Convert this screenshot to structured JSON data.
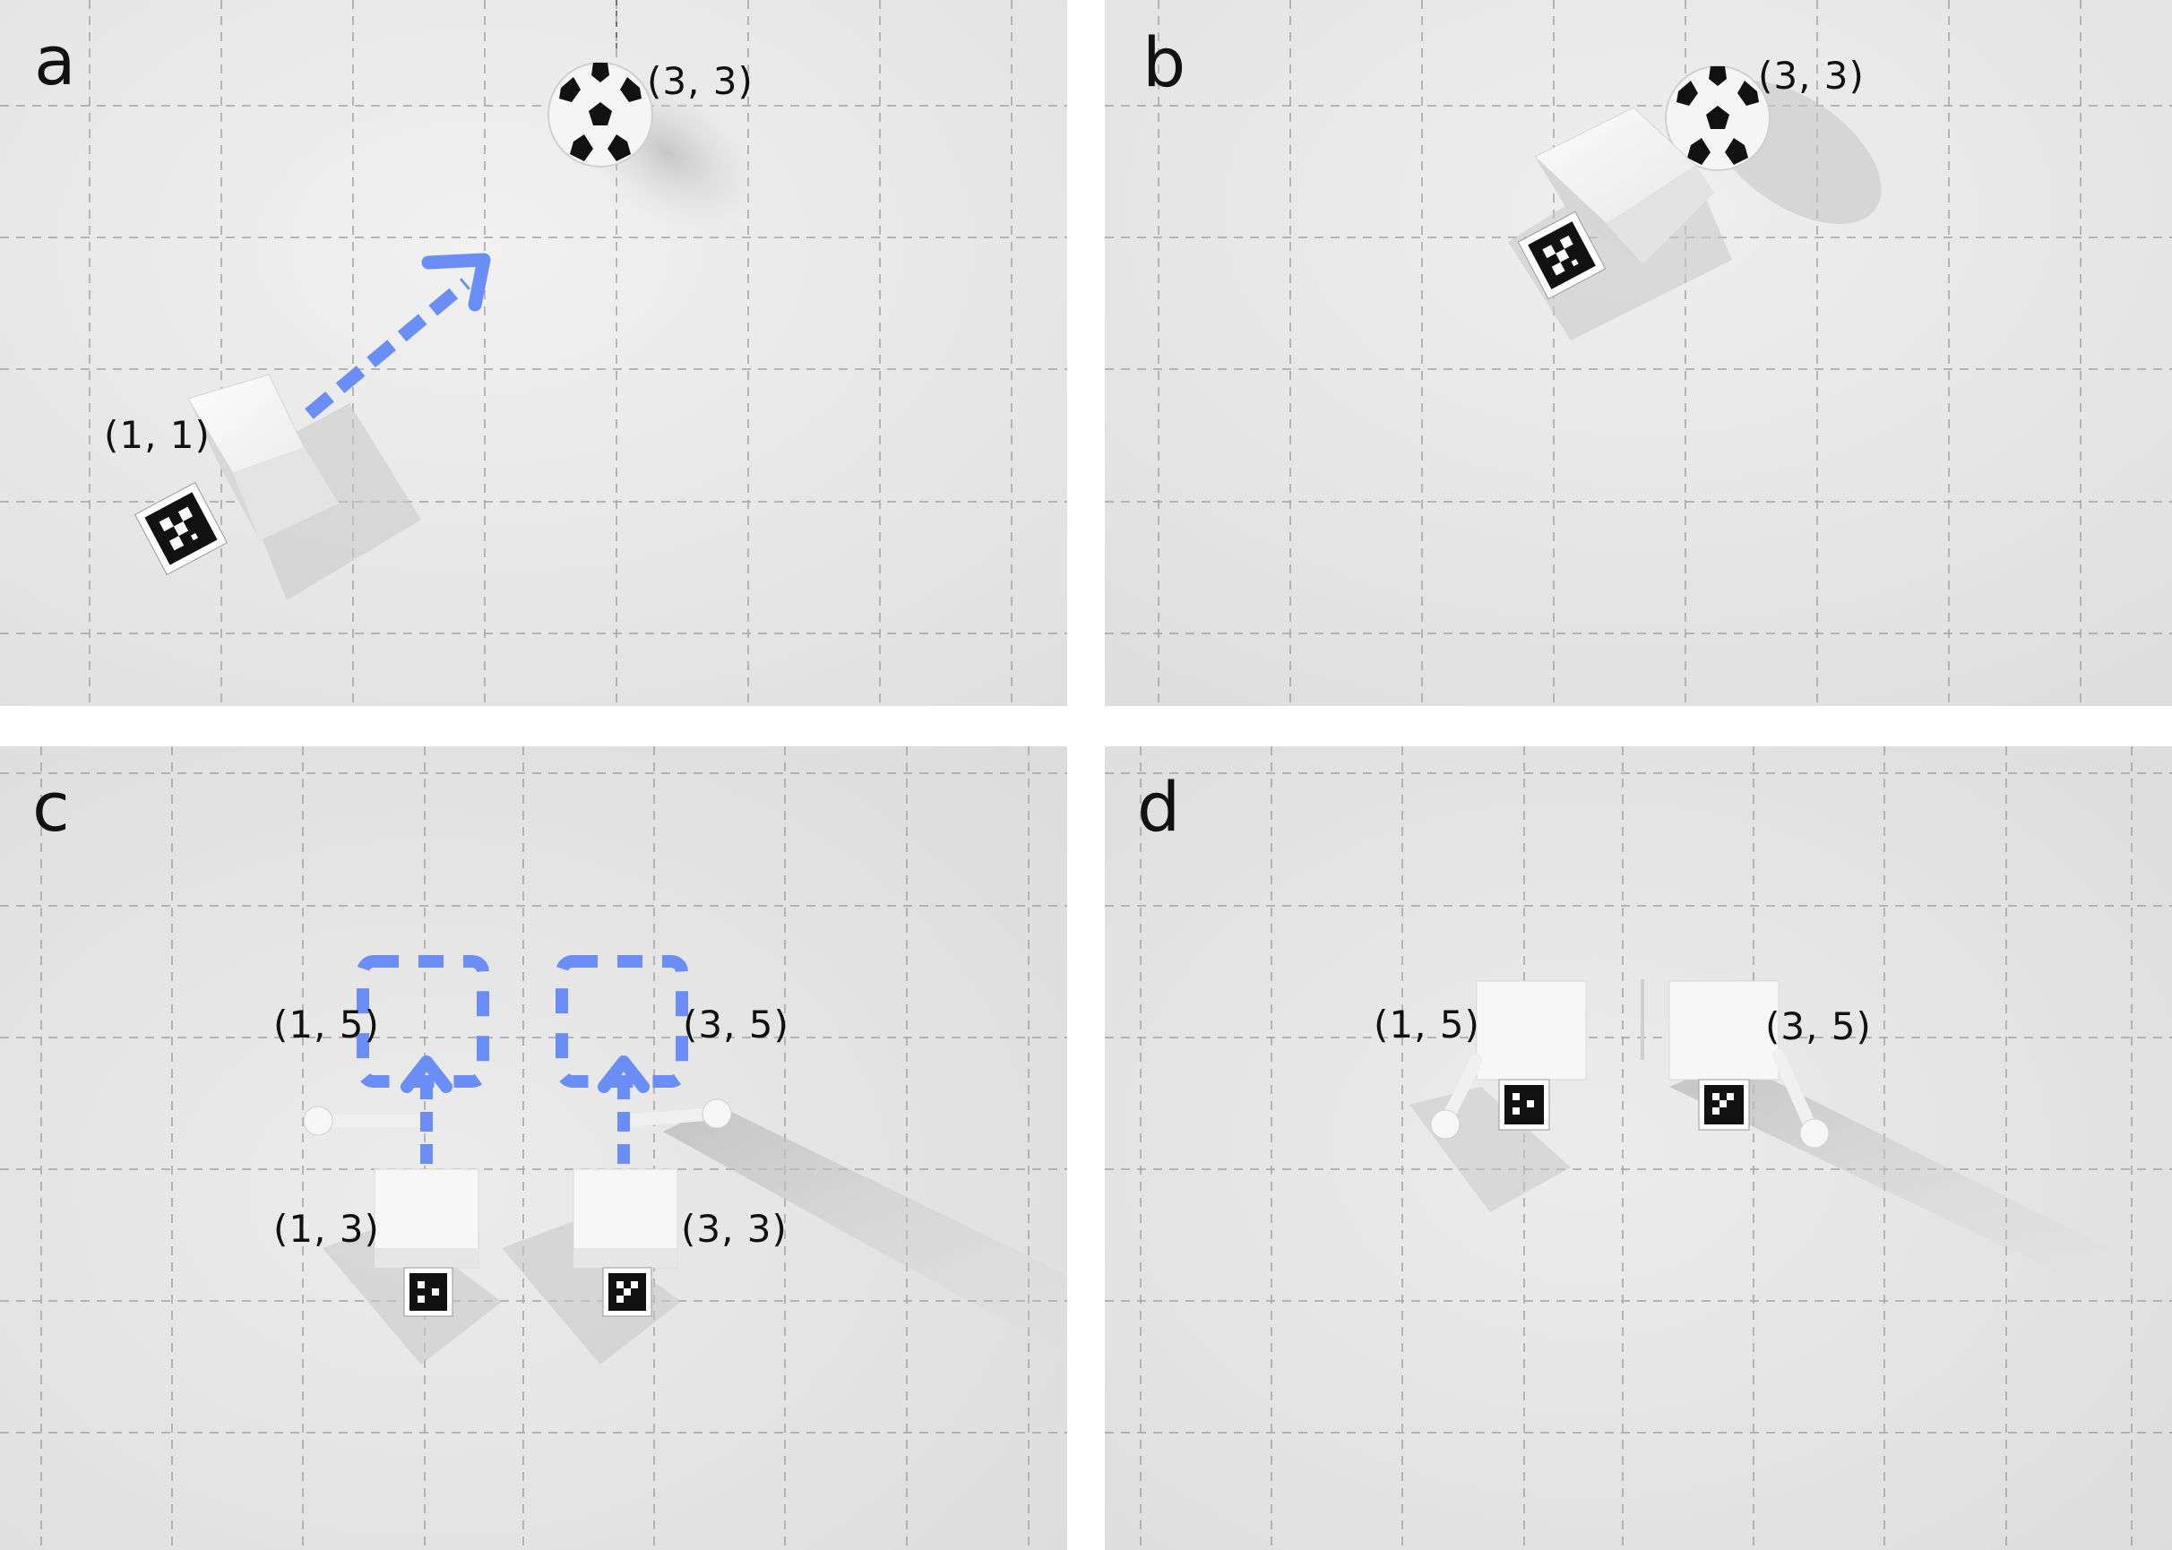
{
  "panels": {
    "a": {
      "letter": "a",
      "start_label": "(1, 1)",
      "goal_label": "(3, 3)"
    },
    "b": {
      "letter": "b",
      "goal_label": "(3, 3)"
    },
    "c": {
      "letter": "c",
      "left_target_label": "(1, 5)",
      "right_target_label": "(3, 5)",
      "left_start_label": "(1, 3)",
      "right_start_label": "(3, 3)"
    },
    "d": {
      "letter": "d",
      "left_label": "(1, 5)",
      "right_label": "(3, 5)"
    }
  },
  "colors": {
    "arrow": "#6b8ef6",
    "background_light": "#ebebeb",
    "background_dark": "#dcdcdc",
    "grid_line": "#9a9a9a",
    "cube": "#f7f7f7",
    "marker": "#111111"
  },
  "icons": [
    "robot-cube",
    "soccer-ball",
    "aruco-marker",
    "dashed-arrow",
    "target-square",
    "gripper-arm"
  ]
}
